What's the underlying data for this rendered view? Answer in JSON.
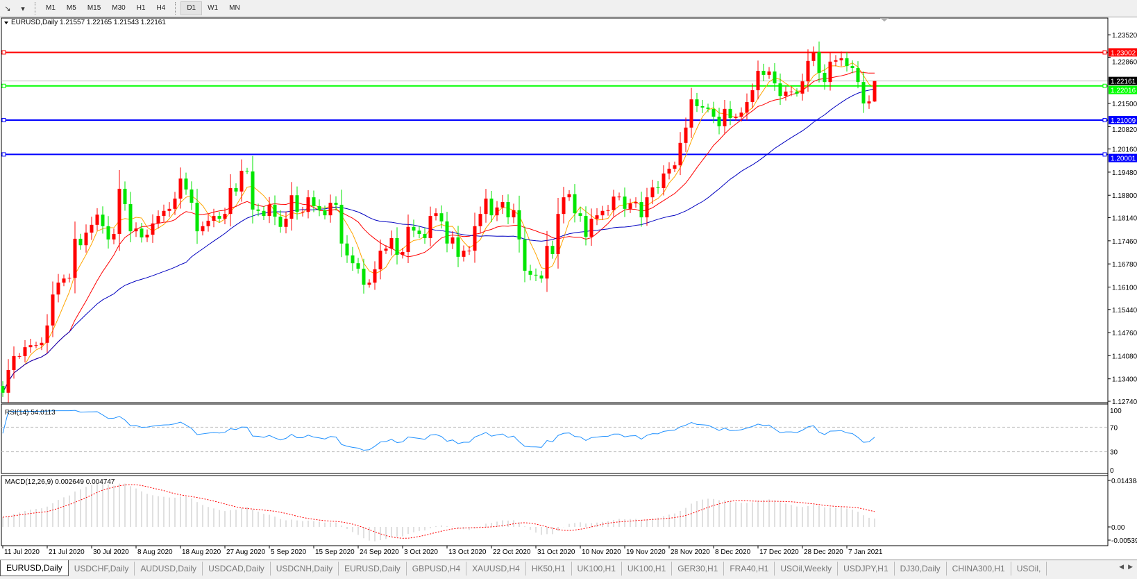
{
  "toolbar": {
    "left_icons": [
      "line-tool-icon",
      "dropdown-icon"
    ],
    "timeframes": [
      "M1",
      "M5",
      "M15",
      "M30",
      "H1",
      "H4",
      "D1",
      "W1",
      "MN"
    ],
    "active_timeframe": "D1"
  },
  "chart": {
    "header": "EURUSD,Daily  1.21557 1.22165 1.21543 1.22161",
    "candle_up_color": "#ff0000",
    "candle_down_color": "#00e600",
    "price_ticks": [
      "1.23520",
      "1.22860",
      "1.21500",
      "1.20820",
      "1.20160",
      "1.19480",
      "1.18800",
      "1.18140",
      "1.17460",
      "1.16780",
      "1.16100",
      "1.15440",
      "1.14760",
      "1.14080",
      "1.13400",
      "1.12740"
    ],
    "current_price": "1.22161",
    "hlines": [
      {
        "price": "1.23002",
        "color": "#ff0000"
      },
      {
        "price": "1.22016",
        "color": "#00ff00"
      },
      {
        "price": "1.21009",
        "color": "#0000ff"
      },
      {
        "price": "1.20001",
        "color": "#0000ff"
      }
    ],
    "ma_colors": [
      "#ffa500",
      "#ff0000",
      "#0000c0"
    ],
    "date_labels": [
      "11 Jul 2020",
      "21 Jul 2020",
      "30 Jul 2020",
      "8 Aug 2020",
      "18 Aug 2020",
      "27 Aug 2020",
      "5 Sep 2020",
      "15 Sep 2020",
      "24 Sep 2020",
      "3 Oct 2020",
      "13 Oct 2020",
      "22 Oct 2020",
      "31 Oct 2020",
      "10 Nov 2020",
      "19 Nov 2020",
      "28 Nov 2020",
      "8 Dec 2020",
      "17 Dec 2020",
      "28 Dec 2020",
      "7 Jan 2021"
    ],
    "first_open": 1.1319,
    "last_bar": {
      "open": 1.21557,
      "high": 1.22165,
      "low": 1.21543,
      "close": 1.22161
    },
    "closes": [
      1.1299,
      1.1366,
      1.1407,
      1.1407,
      1.1433,
      1.1439,
      1.1439,
      1.1446,
      1.1497,
      1.1588,
      1.1623,
      1.1635,
      1.1637,
      1.1752,
      1.1733,
      1.177,
      1.1793,
      1.1823,
      1.1789,
      1.175,
      1.1766,
      1.1899,
      1.1854,
      1.1774,
      1.1782,
      1.1756,
      1.1764,
      1.1797,
      1.1819,
      1.1834,
      1.184,
      1.187,
      1.1929,
      1.1897,
      1.1858,
      1.1774,
      1.1789,
      1.1805,
      1.1819,
      1.1811,
      1.1825,
      1.1901,
      1.1891,
      1.1952,
      1.195,
      1.1838,
      1.1834,
      1.1819,
      1.1852,
      1.1817,
      1.1787,
      1.1811,
      1.188,
      1.1831,
      1.1831,
      1.1874,
      1.1848,
      1.1836,
      1.1821,
      1.1858,
      1.1852,
      1.1738,
      1.1703,
      1.168,
      1.1664,
      1.1617,
      1.1623,
      1.1662,
      1.1717,
      1.1723,
      1.1754,
      1.1705,
      1.1713,
      1.1787,
      1.1776,
      1.1766,
      1.1754,
      1.1819,
      1.1827,
      1.1803,
      1.1738,
      1.1756,
      1.1699,
      1.1717,
      1.1717,
      1.1789,
      1.1825,
      1.187,
      1.1821,
      1.1844,
      1.186,
      1.1815,
      1.1836,
      1.175,
      1.1658,
      1.1646,
      1.1644,
      1.1635,
      1.1731,
      1.1707,
      1.1825,
      1.1874,
      1.1883,
      1.1827,
      1.1819,
      1.1758,
      1.1811,
      1.1821,
      1.1834,
      1.1836,
      1.1876,
      1.1876,
      1.184,
      1.1856,
      1.186,
      1.1815,
      1.1874,
      1.1903,
      1.1901,
      1.1944,
      1.1958,
      1.1968,
      1.2034,
      1.2079,
      1.2162,
      1.2142,
      1.2138,
      1.2134,
      1.2111,
      1.2083,
      1.2134,
      1.2107,
      1.2111,
      1.2123,
      1.2154,
      1.2189,
      1.2246,
      1.2234,
      1.2244,
      1.2209,
      1.2172,
      1.2185,
      1.2185,
      1.2179,
      1.2215,
      1.2275,
      1.2301,
      1.224,
      1.2213,
      1.2273,
      1.2277,
      1.2283,
      1.226,
      1.2254,
      1.2213,
      1.215,
      1.2156,
      1.22161
    ]
  },
  "rsi": {
    "label": "RSI(14) 54.0113",
    "levels": [
      "100",
      "70",
      "30",
      "0"
    ],
    "color": "#1e90ff"
  },
  "macd": {
    "label": "MACD(12,26,9) 0.002649 0.004747",
    "ticks": [
      "0.014384",
      "0.00",
      "-0.005396"
    ],
    "max": 0.014384,
    "min": -0.005396,
    "hist_color": "#c0c0c0",
    "signal_color": "#ff0000"
  },
  "tabs": [
    "EURUSD,Daily",
    "USDCHF,Daily",
    "AUDUSD,Daily",
    "USDCAD,Daily",
    "USDCNH,Daily",
    "EURUSD,Daily",
    "GBPUSD,H4",
    "XAUUSD,H4",
    "HK50,H1",
    "UK100,H1",
    "UK100,H1",
    "GER30,H1",
    "FRA40,H1",
    "USOil,Weekly",
    "USDJPY,H1",
    "DJ30,Daily",
    "CHINA300,H1",
    "USOil,"
  ],
  "active_tab": 0
}
